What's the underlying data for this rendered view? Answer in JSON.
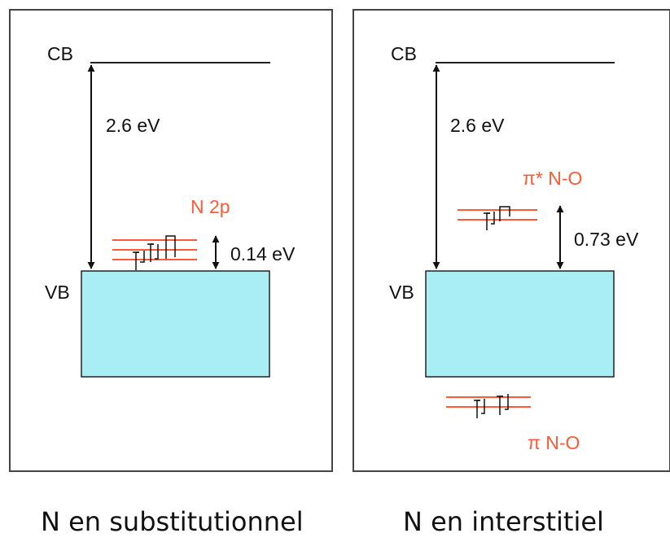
{
  "colors": {
    "frame": "#444444",
    "arrow": "#111111",
    "band_fill": "#aaeef5",
    "band_stroke": "#222222",
    "impurity": "#ff5a36"
  },
  "panels": [
    {
      "cb_label": "CB",
      "vb_label": "VB",
      "gap_label": "2.6 eV",
      "level_label": "N 2p",
      "offset_label": "0.14 eV",
      "caption": "N en substitutionnel"
    },
    {
      "cb_label": "CB",
      "vb_label": "VB",
      "gap_label": "2.6 eV",
      "upper_level_label": "π* N-O",
      "offset_label": "0.73 eV",
      "lower_level_label": "π N-O",
      "caption": "N en interstitiel"
    }
  ]
}
